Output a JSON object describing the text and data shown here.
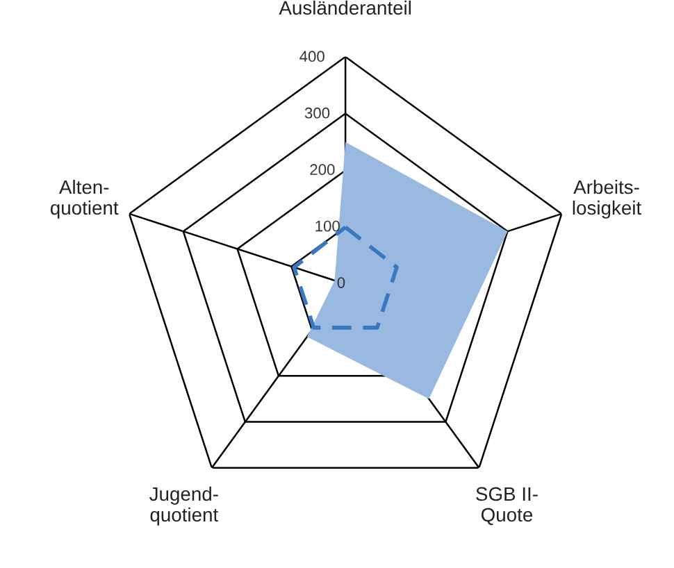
{
  "chart_data": {
    "type": "radar",
    "categories": [
      "Ausländeranteil",
      "Arbeits-\nlosigkeit",
      "SGB II-\nQuote",
      "Jugend-\nquotient",
      "Alten-\nquotient"
    ],
    "ylim": [
      0,
      400
    ],
    "yticks": [
      0,
      100,
      200,
      300,
      400
    ],
    "grid": true,
    "series": [
      {
        "color": "#99b9e0",
        "values": [
          250,
          300,
          250,
          115,
          20
        ]
      },
      {
        "color": "#3a78c2",
        "line_style": "dashed",
        "values": [
          100,
          95,
          95,
          95,
          95
        ]
      }
    ]
  }
}
